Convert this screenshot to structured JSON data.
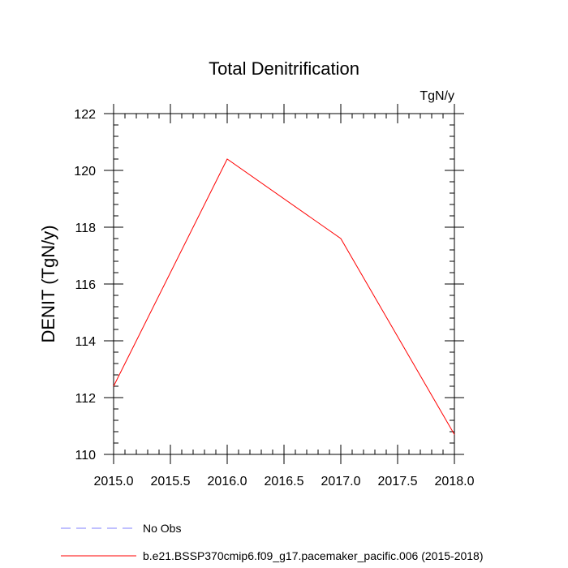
{
  "chart_data": {
    "type": "line",
    "title": "Total Denitrification",
    "units": "TgN/y",
    "xlabel": "",
    "ylabel": "DENIT  (TgN/y)",
    "xlim": [
      2015.0,
      2018.0
    ],
    "ylim": [
      110,
      122
    ],
    "x_ticks": [
      "2015.0",
      "2015.5",
      "2016.0",
      "2016.5",
      "2017.0",
      "2017.5",
      "2018.0"
    ],
    "y_ticks": [
      "110",
      "112",
      "114",
      "116",
      "118",
      "120",
      "122"
    ],
    "grid": false,
    "legend_position": "bottom",
    "series": [
      {
        "name": "No Obs",
        "color": "#8080ff",
        "dash": "dashed",
        "x": [],
        "y": []
      },
      {
        "name": "b.e21.BSSP370cmip6.f09_g17.pacemaker_pacific.006 (2015-2018)",
        "color": "#ff0000",
        "dash": "solid",
        "x": [
          2015.0,
          2016.0,
          2017.0,
          2018.0
        ],
        "y": [
          112.4,
          120.4,
          117.6,
          110.7
        ]
      }
    ]
  }
}
